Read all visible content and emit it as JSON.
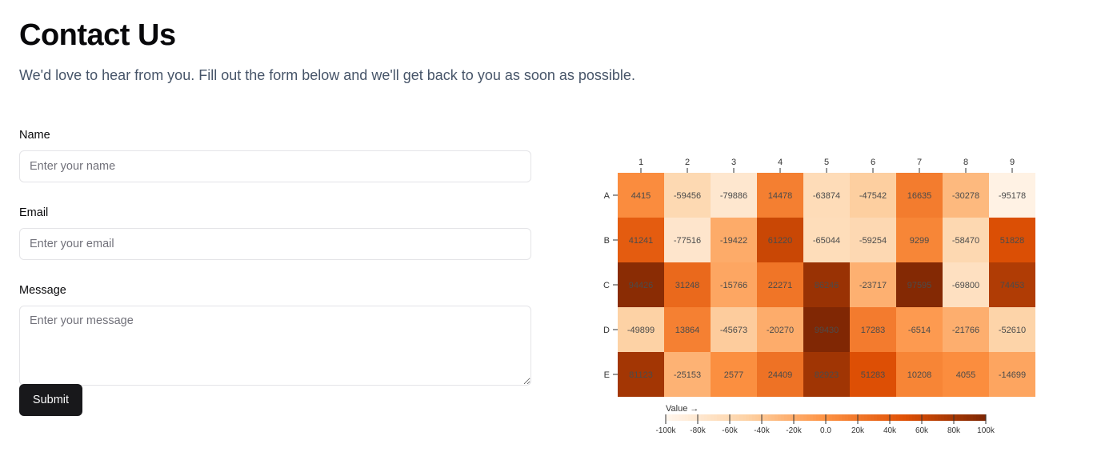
{
  "page": {
    "title": "Contact Us",
    "subtitle": "We'd love to hear from you. Fill out the form below and we'll get back to you as soon as possible."
  },
  "form": {
    "name_label": "Name",
    "name_placeholder": "Enter your name",
    "email_label": "Email",
    "email_placeholder": "Enter your email",
    "message_label": "Message",
    "message_placeholder": "Enter your message",
    "submit_label": "Submit"
  },
  "chart_data": {
    "type": "heatmap",
    "columns": [
      "1",
      "2",
      "3",
      "4",
      "5",
      "6",
      "7",
      "8",
      "9"
    ],
    "rows": [
      "A",
      "B",
      "C",
      "D",
      "E"
    ],
    "values": [
      [
        4415,
        -59456,
        -79886,
        14478,
        -63874,
        -47542,
        16635,
        -30278,
        -95178
      ],
      [
        41241,
        -77516,
        -19422,
        61220,
        -65044,
        -59254,
        9299,
        -58470,
        51828
      ],
      [
        94426,
        31248,
        -15766,
        22271,
        86246,
        -23717,
        97595,
        -69800,
        74453
      ],
      [
        -49899,
        13864,
        -45673,
        -20270,
        99430,
        17283,
        -6514,
        -21766,
        -52610
      ],
      [
        81123,
        -25153,
        2577,
        24409,
        82923,
        51283,
        10208,
        4055,
        -14699
      ]
    ],
    "color_scale": {
      "label": "Value →",
      "domain": [
        -100000,
        100000
      ],
      "colors": [
        "#fff5eb",
        "#fdd2a5",
        "#fd9243",
        "#df5005",
        "#7f2704"
      ]
    },
    "legend_ticks": [
      "-100k",
      "-80k",
      "-60k",
      "-40k",
      "-20k",
      "0.0",
      "20k",
      "40k",
      "60k",
      "80k",
      "100k"
    ]
  }
}
